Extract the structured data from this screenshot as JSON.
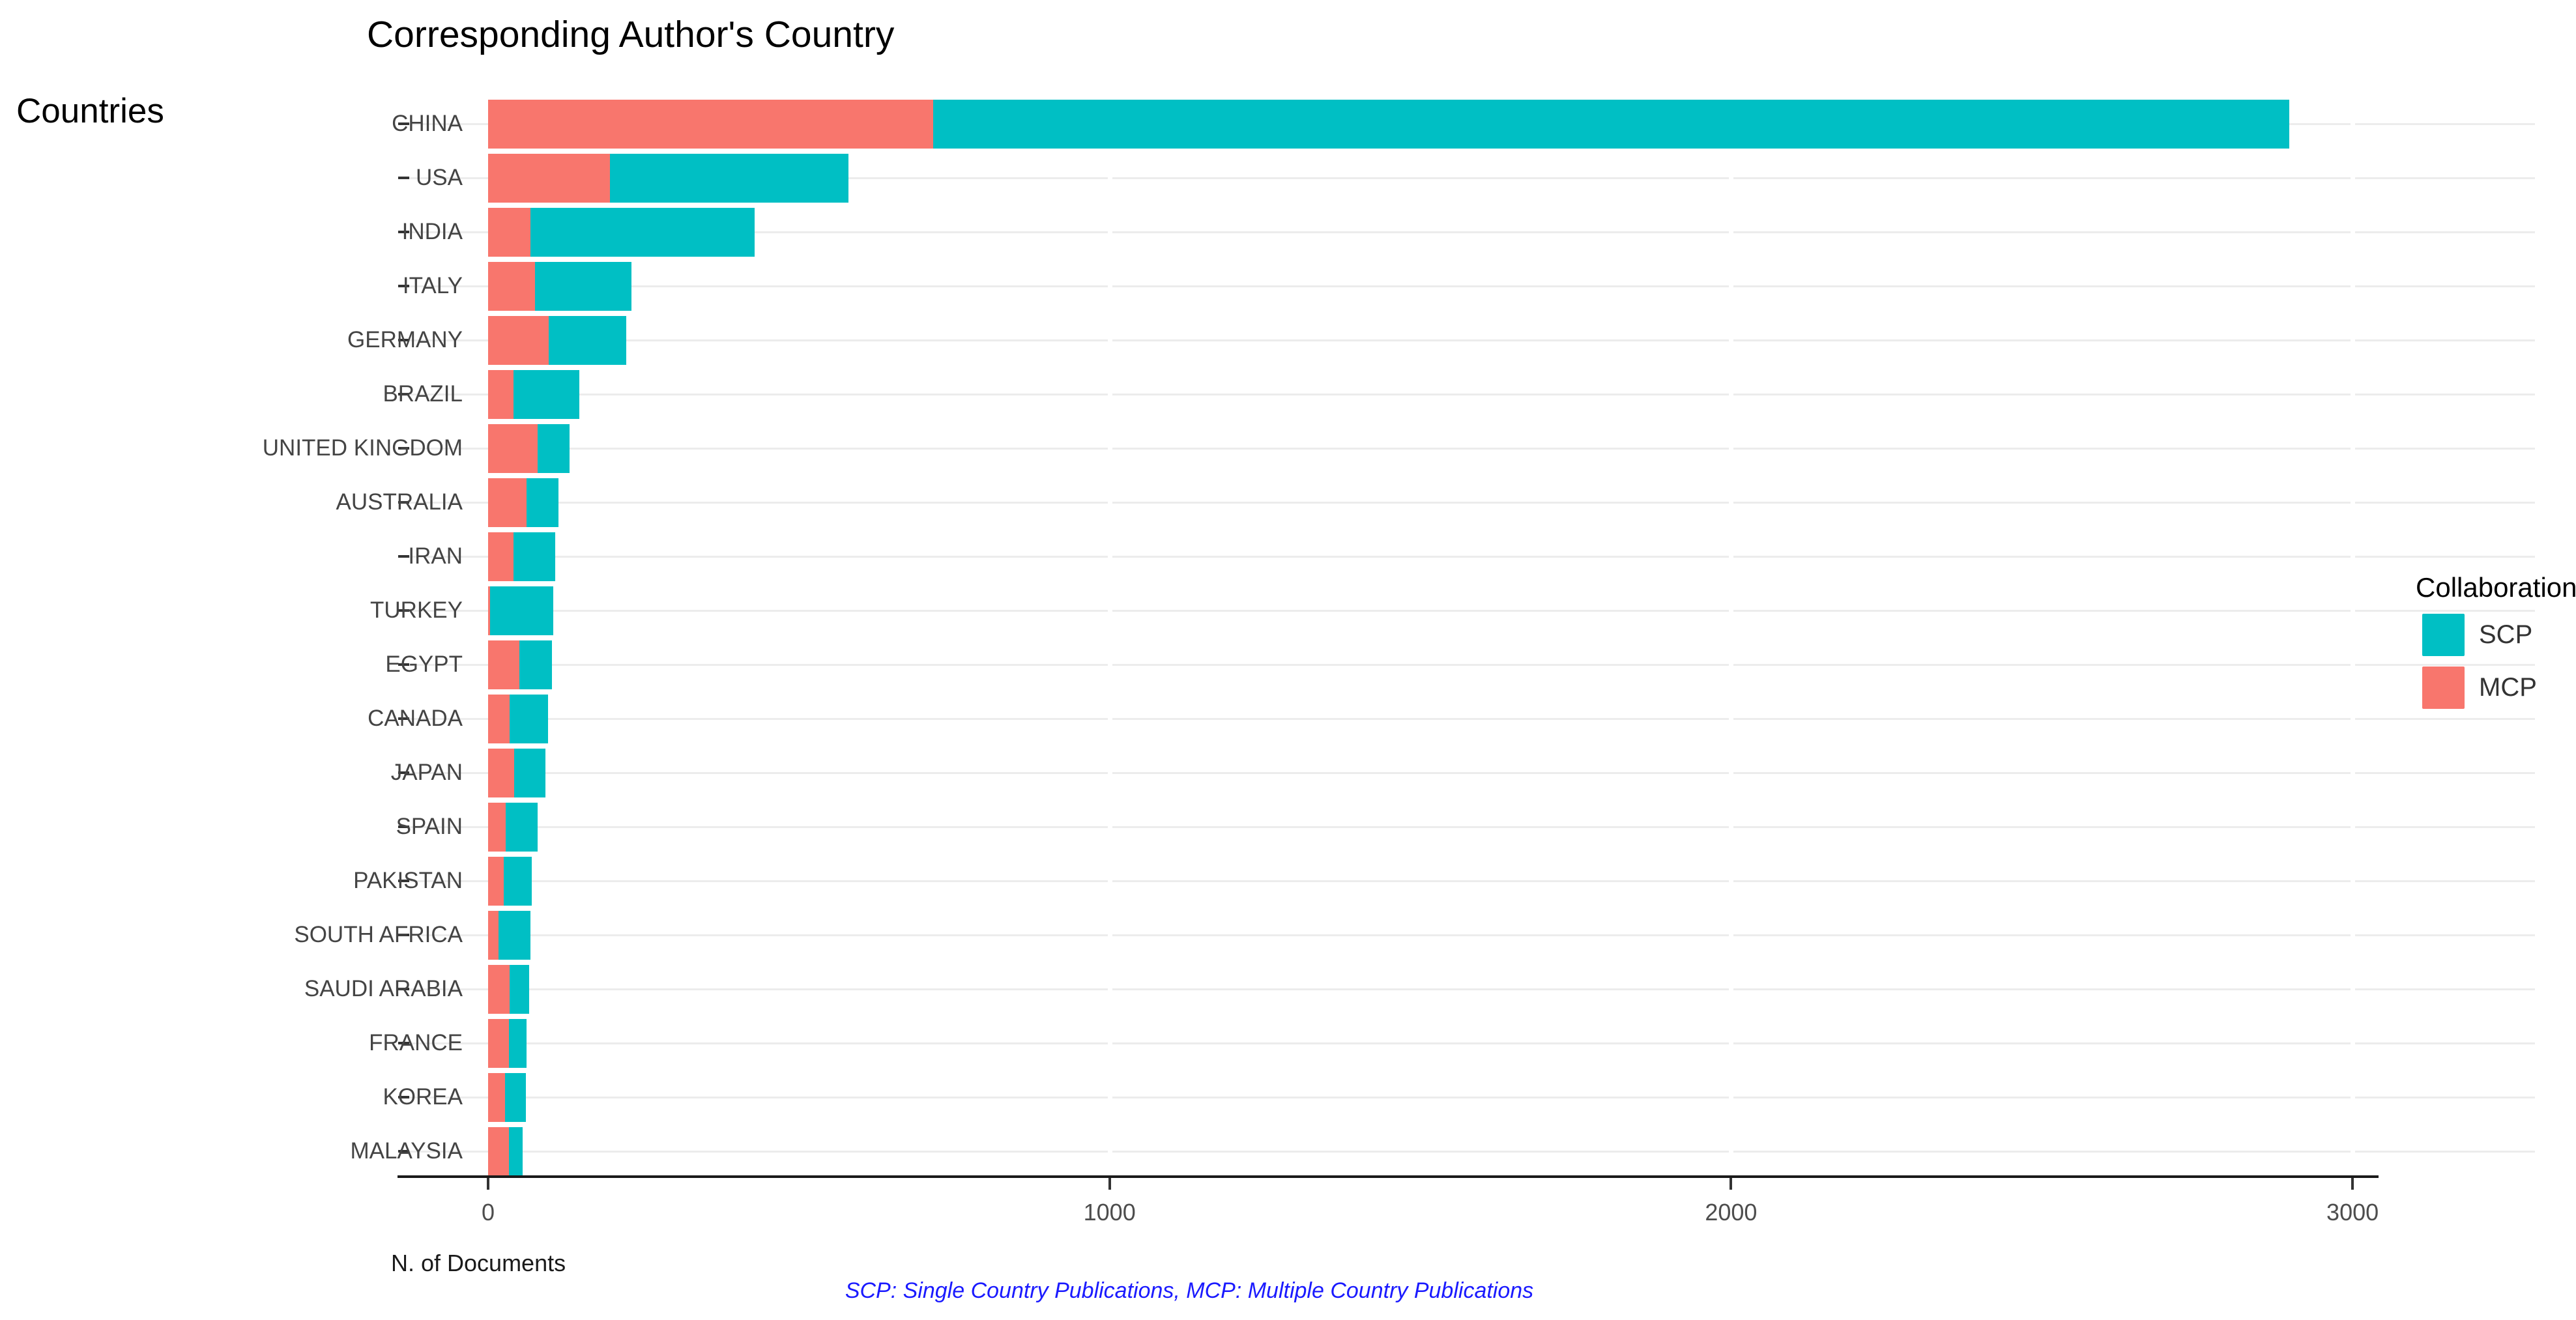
{
  "title": "Corresponding Author's Country",
  "y_axis_title": "Countries",
  "x_axis_title": "N. of Documents",
  "caption": "SCP: Single Country Publications, MCP: Multiple Country Publications",
  "legend": {
    "title": "Collaboration",
    "items": [
      {
        "label": "SCP",
        "color": "#00BFC4"
      },
      {
        "label": "MCP",
        "color": "#F8766D"
      }
    ]
  },
  "colors": {
    "scp": "#00BFC4",
    "mcp": "#F8766D",
    "gridline": "#ececec",
    "axis_line": "#1a1a1a",
    "caption_blue": "#1a1aff"
  },
  "chart_data": {
    "type": "bar",
    "orientation": "horizontal",
    "stacked": true,
    "title": "Corresponding Author's Country",
    "xlabel": "N. of Documents",
    "ylabel": "Countries",
    "xlim": [
      0,
      3000
    ],
    "x_ticks": [
      0,
      1000,
      2000,
      3000
    ],
    "grid": "horizontal-light",
    "legend_position": "right",
    "legend_title": "Collaboration",
    "stack_order_note": "MCP segment drawn first from zero, SCP stacked after",
    "categories": [
      "CHINA",
      "USA",
      "INDIA",
      "ITALY",
      "GERMANY",
      "BRAZIL",
      "UNITED KINGDOM",
      "AUSTRALIA",
      "IRAN",
      "TURKEY",
      "EGYPT",
      "CANADA",
      "JAPAN",
      "SPAIN",
      "PAKISTAN",
      "SOUTH AFRICA",
      "SAUDI ARABIA",
      "FRANCE",
      "KOREA",
      "MALAYSIA"
    ],
    "series": [
      {
        "name": "MCP",
        "color": "#F8766D",
        "values": [
          716,
          196,
          68,
          76,
          98,
          41,
          80,
          62,
          41,
          3,
          50,
          35,
          42,
          28,
          25,
          17,
          35,
          34,
          27,
          34
        ]
      },
      {
        "name": "SCP",
        "color": "#00BFC4",
        "values": [
          2182,
          384,
          361,
          155,
          124,
          106,
          51,
          51,
          67,
          102,
          53,
          61,
          50,
          52,
          45,
          51,
          31,
          28,
          34,
          22
        ]
      }
    ]
  }
}
